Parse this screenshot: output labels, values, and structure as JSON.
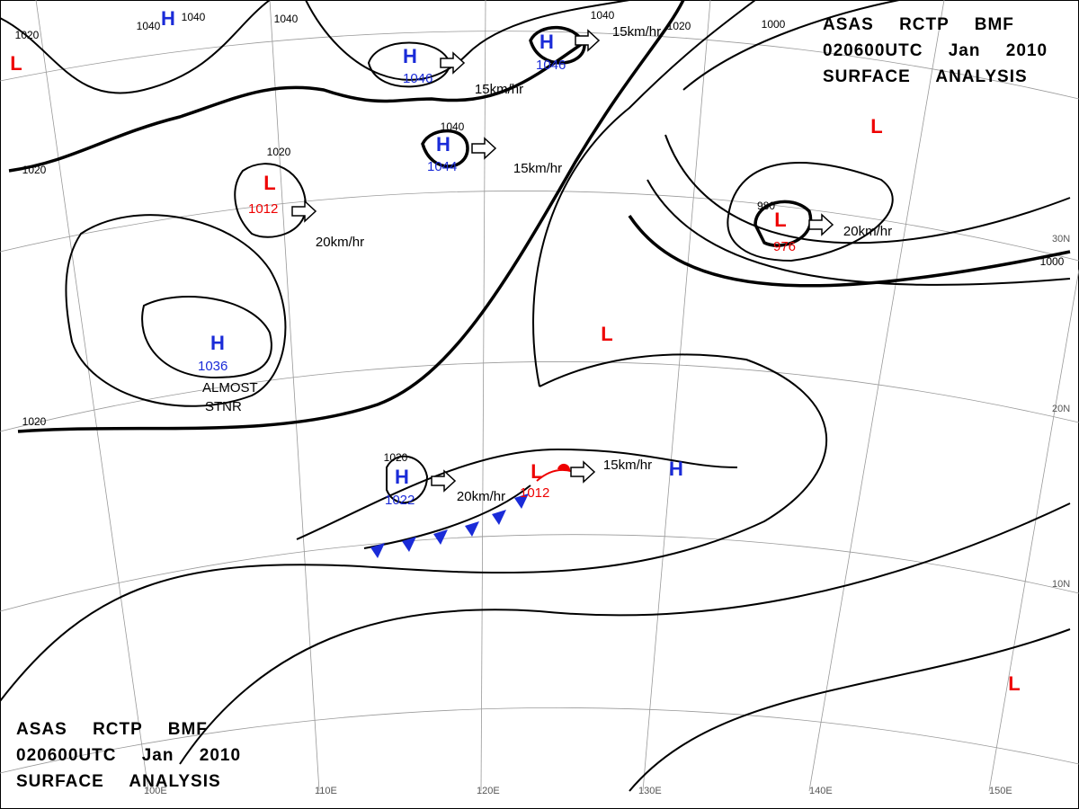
{
  "header_top": {
    "lines": [
      "ASAS RCTP BMF",
      "020600UTC Jan 2010",
      "SURFACE ANALYSIS"
    ]
  },
  "header_bottom": {
    "lines": [
      "ASAS RCTP BMF",
      "020600UTC Jan 2010",
      "SURFACE ANALYSIS"
    ]
  },
  "systems": [
    {
      "symbol": "H",
      "pressure": "1046"
    },
    {
      "symbol": "H",
      "pressure": "1046"
    },
    {
      "symbol": "H",
      "pressure": "1044"
    },
    {
      "symbol": "H",
      "pressure": "1036"
    },
    {
      "symbol": "H",
      "pressure": "1022"
    },
    {
      "symbol": "H"
    },
    {
      "symbol": "H"
    },
    {
      "symbol": "L",
      "pressure": "1012"
    },
    {
      "symbol": "L",
      "pressure": "976"
    },
    {
      "symbol": "L",
      "pressure": "1012"
    },
    {
      "symbol": "L"
    },
    {
      "symbol": "L"
    },
    {
      "symbol": "L"
    },
    {
      "symbol": "L"
    }
  ],
  "isobar_labels": [
    "1020",
    "1040",
    "1040",
    "1040",
    "1020",
    "1020",
    "1040",
    "1040",
    "1020",
    "1000",
    "980",
    "1000",
    "1020",
    "1020"
  ],
  "movements": [
    "15km/hr",
    "15km/hr",
    "15km/hr",
    "15km/hr",
    "20km/hr",
    "20km/hr",
    "20km/hr"
  ],
  "annotation": [
    "ALMOST",
    "STNR"
  ],
  "latitudes": [
    "30N",
    "20N",
    "10N"
  ],
  "longitudes": [
    "100E",
    "110E",
    "120E",
    "130E",
    "140E",
    "150E"
  ]
}
